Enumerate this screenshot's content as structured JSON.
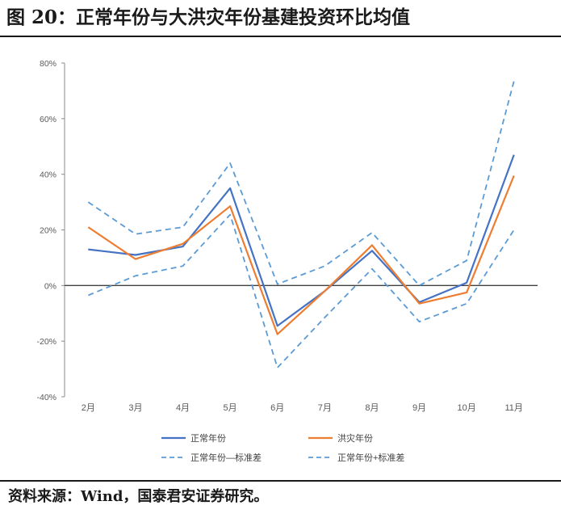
{
  "figure": {
    "title": "图 20：正常年份与大洪灾年份基建投资环比均值",
    "source": "资料来源：Wind，国泰君安证券研究。"
  },
  "chart_data": {
    "type": "line",
    "categories": [
      "2月",
      "3月",
      "4月",
      "5月",
      "6月",
      "7月",
      "8月",
      "9月",
      "10月",
      "11月"
    ],
    "ylim": [
      -0.4,
      0.8
    ],
    "yticks": [
      -0.4,
      -0.2,
      0,
      0.2,
      0.4,
      0.6,
      0.8
    ],
    "ytick_labels": [
      "-40%",
      "-20%",
      "0%",
      "20%",
      "40%",
      "60%",
      "80%"
    ],
    "grid": false,
    "legend_position": "bottom",
    "series": [
      {
        "name": "正常年份",
        "color": "#4472c4",
        "dash": "solid",
        "values": [
          0.13,
          0.11,
          0.14,
          0.35,
          -0.145,
          -0.02,
          0.125,
          -0.06,
          0.01,
          0.47
        ]
      },
      {
        "name": "洪灾年份",
        "color": "#ed7d31",
        "dash": "solid",
        "values": [
          0.21,
          0.095,
          0.15,
          0.285,
          -0.175,
          -0.02,
          0.145,
          -0.065,
          -0.025,
          0.395
        ]
      },
      {
        "name": "正常年份—标准差",
        "color": "#5b9bd5",
        "dash": "dashed",
        "values": [
          -0.035,
          0.035,
          0.07,
          0.255,
          -0.295,
          -0.115,
          0.06,
          -0.13,
          -0.065,
          0.2
        ]
      },
      {
        "name": "正常年份+标准差",
        "color": "#5b9bd5",
        "dash": "dashed",
        "values": [
          0.3,
          0.185,
          0.21,
          0.44,
          0.005,
          0.07,
          0.19,
          0.0,
          0.09,
          0.735
        ]
      }
    ]
  }
}
